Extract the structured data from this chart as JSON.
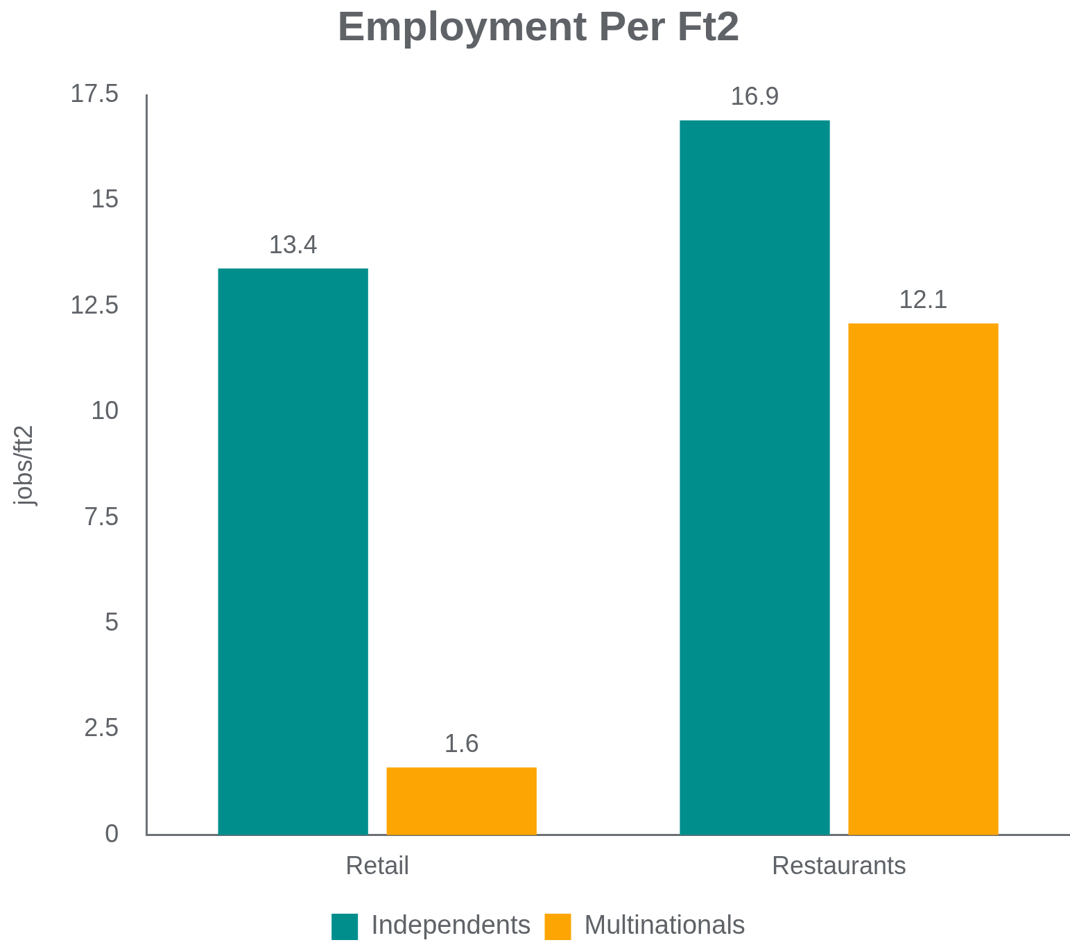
{
  "chart_data": {
    "type": "bar",
    "title": "Employment Per Ft2",
    "ylabel": "jobs/ft2",
    "categories": [
      "Retail",
      "Restaurants"
    ],
    "series": [
      {
        "name": "Independents",
        "color": "#008e8c",
        "values": [
          13.4,
          16.9
        ]
      },
      {
        "name": "Multinationals",
        "color": "#fca503",
        "values": [
          1.6,
          12.1
        ]
      }
    ],
    "ylim": [
      0,
      17.5
    ],
    "yticks": [
      0,
      2.5,
      5,
      7.5,
      10,
      12.5,
      15,
      17.5
    ],
    "grid": false,
    "legend": "bottom",
    "data_labels": true
  }
}
